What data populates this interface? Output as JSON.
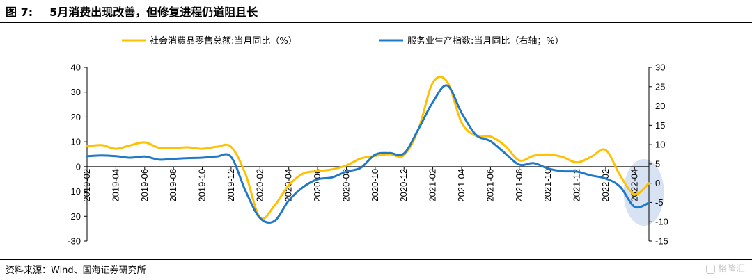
{
  "figure": {
    "number": "图 7:",
    "title": "5月消费出现改善，但修复进程仍道阻且长"
  },
  "source": "资料来源：Wind、国海证券研究所",
  "watermark": "格隆汇",
  "colors": {
    "retail": "#FFC000",
    "services": "#1F78C8",
    "highlight": "#C9D8EE"
  },
  "chart_data": {
    "type": "line",
    "title": "",
    "legend_position": "top",
    "grid": false,
    "x": [
      "2019-02",
      "2019-03",
      "2019-04",
      "2019-05",
      "2019-06",
      "2019-07",
      "2019-08",
      "2019-09",
      "2019-10",
      "2019-11",
      "2019-12",
      "2020-01",
      "2020-02",
      "2020-03",
      "2020-04",
      "2020-05",
      "2020-06",
      "2020-07",
      "2020-08",
      "2020-09",
      "2020-10",
      "2020-11",
      "2020-12",
      "2021-01",
      "2021-02",
      "2021-03",
      "2021-04",
      "2021-05",
      "2021-06",
      "2021-07",
      "2021-08",
      "2021-09",
      "2021-10",
      "2021-11",
      "2021-12",
      "2022-01",
      "2022-02",
      "2022-03",
      "2022-04",
      "2022-05"
    ],
    "x_tick_labels": [
      "2019-02",
      "2019-04",
      "2019-06",
      "2019-08",
      "2019-10",
      "2019-12",
      "2020-02",
      "2020-04",
      "2020-06",
      "2020-08",
      "2020-10",
      "2020-12",
      "2021-02",
      "2021-04",
      "2021-06",
      "2021-08",
      "2021-10",
      "2021-12",
      "2022-02",
      "2022-04"
    ],
    "y_left": {
      "range": [
        -30,
        40
      ],
      "ticks": [
        -30,
        -20,
        -10,
        0,
        10,
        20,
        30,
        40
      ]
    },
    "y_right": {
      "range": [
        -15,
        30
      ],
      "ticks": [
        -15,
        -10,
        -5,
        0,
        5,
        10,
        15,
        20,
        25,
        30
      ]
    },
    "series": [
      {
        "name": "社会消费品零售总额:当月同比（%）",
        "axis": "left",
        "color": "#FFC000",
        "values": [
          8.2,
          8.7,
          7.2,
          8.6,
          9.8,
          7.6,
          7.5,
          7.8,
          7.2,
          8.0,
          8.0,
          -3.0,
          -20.5,
          -15.8,
          -7.5,
          -2.8,
          -1.8,
          -1.1,
          0.5,
          3.3,
          4.3,
          5.0,
          4.6,
          15.0,
          33.8,
          34.2,
          17.7,
          12.4,
          12.1,
          8.5,
          2.5,
          4.4,
          4.9,
          3.9,
          1.7,
          4.0,
          6.7,
          -3.5,
          -11.1,
          -6.7
        ]
      },
      {
        "name": "服务业生产指数:当月同比（右轴；%）",
        "axis": "right",
        "color": "#1F78C8",
        "values": [
          7.0,
          7.2,
          7.0,
          6.6,
          6.9,
          6.1,
          6.3,
          6.5,
          6.6,
          6.9,
          6.8,
          -2.0,
          -9.0,
          -9.8,
          -4.5,
          -1.0,
          1.0,
          1.5,
          3.0,
          4.0,
          7.4,
          7.8,
          7.7,
          14.0,
          21.0,
          25.3,
          18.2,
          12.5,
          10.9,
          7.8,
          4.8,
          5.2,
          3.8,
          3.1,
          3.0,
          2.0,
          1.2,
          -0.9,
          -6.1,
          -5.1
        ]
      }
    ],
    "annotations": [
      {
        "type": "ellipse-highlight",
        "x_range": [
          "2022-04",
          "2022-05"
        ],
        "description": ""
      }
    ]
  }
}
